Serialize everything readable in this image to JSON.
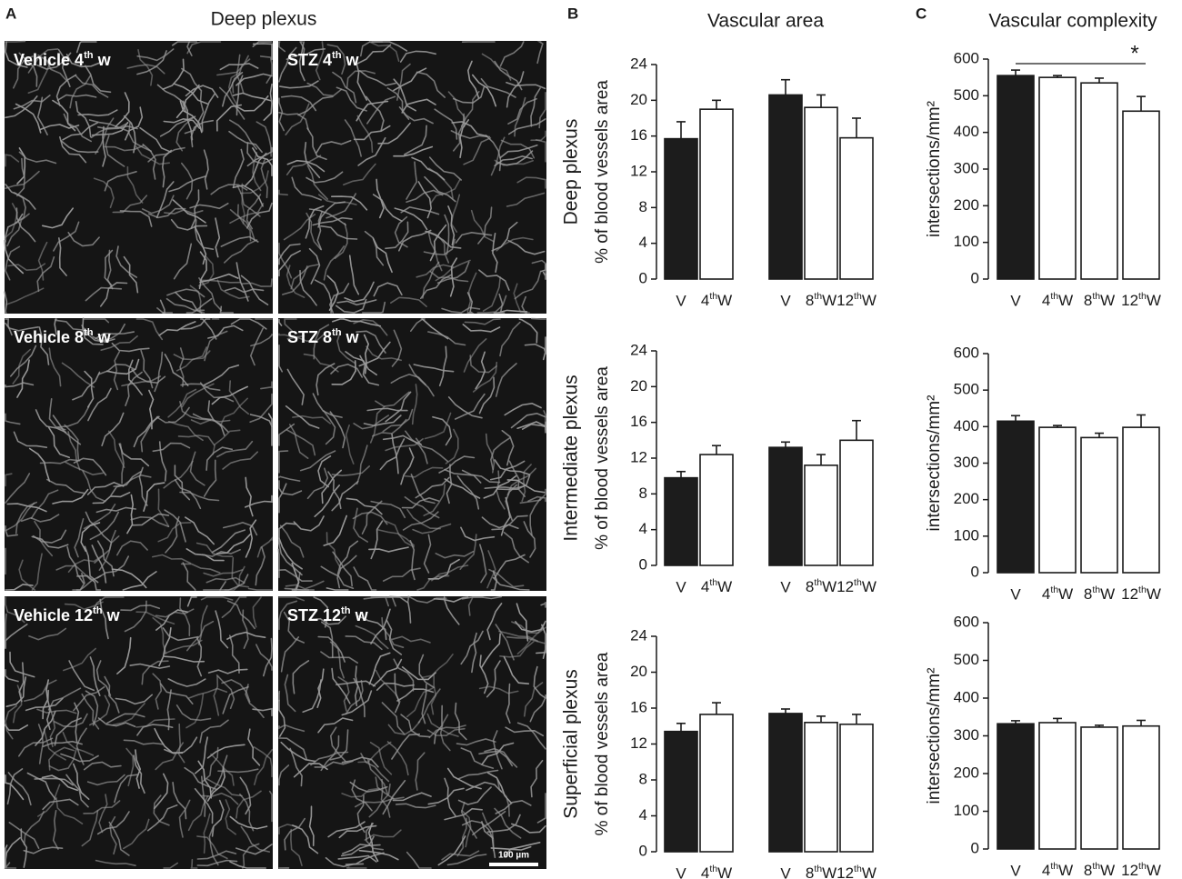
{
  "panels": {
    "A": {
      "letter": "A",
      "title": "Deep plexus",
      "images": [
        "Vehicle 4th w",
        "STZ 4th w",
        "Vehicle 8th w",
        "STZ 8th w",
        "Vehicle 12th w",
        "STZ 12th w"
      ],
      "scale_bar": "100 µm"
    },
    "B": {
      "letter": "B",
      "title": "Vascular area"
    },
    "C": {
      "letter": "C",
      "title": "Vascular complexity"
    }
  },
  "chart_data": [
    {
      "type": "bar",
      "row_label": "Deep plexus",
      "y_label": "% of blood vessels area",
      "categories": [
        "V",
        "4thW",
        "V",
        "8thW",
        "12thW"
      ],
      "values": [
        15.7,
        19.0,
        20.6,
        19.2,
        15.8
      ],
      "errors": [
        1.9,
        1.0,
        1.7,
        1.4,
        2.2
      ],
      "colors": [
        "#1c1c1c",
        "#ffffff",
        "#1c1c1c",
        "#ffffff",
        "#ffffff"
      ],
      "ylim": [
        0,
        24
      ],
      "yticks": [
        0,
        4,
        8,
        12,
        16,
        20,
        24
      ]
    },
    {
      "type": "bar",
      "row_label": "Intermediate plexus",
      "y_label": "% of blood vessels area",
      "categories": [
        "V",
        "4thW",
        "V",
        "8thW",
        "12thW"
      ],
      "values": [
        9.8,
        12.4,
        13.2,
        11.2,
        14.0
      ],
      "errors": [
        0.7,
        1.0,
        0.6,
        1.2,
        2.2
      ],
      "colors": [
        "#1c1c1c",
        "#ffffff",
        "#1c1c1c",
        "#ffffff",
        "#ffffff"
      ],
      "ylim": [
        0,
        24
      ],
      "yticks": [
        0,
        4,
        8,
        12,
        16,
        20,
        24
      ]
    },
    {
      "type": "bar",
      "row_label": "Superficial plexus",
      "y_label": "% of blood vessels area",
      "categories": [
        "V",
        "4thW",
        "V",
        "8thW",
        "12thW"
      ],
      "values": [
        13.4,
        15.3,
        15.4,
        14.4,
        14.2
      ],
      "errors": [
        0.9,
        1.3,
        0.5,
        0.7,
        1.1
      ],
      "colors": [
        "#1c1c1c",
        "#ffffff",
        "#1c1c1c",
        "#ffffff",
        "#ffffff"
      ],
      "ylim": [
        0,
        24
      ],
      "yticks": [
        0,
        4,
        8,
        12,
        16,
        20,
        24
      ]
    },
    {
      "type": "bar",
      "y_label": "intersections/mm²",
      "annotation": "*",
      "categories": [
        "V",
        "4thW",
        "8thW",
        "12thW"
      ],
      "values": [
        555,
        550,
        535,
        458
      ],
      "errors": [
        15,
        5,
        13,
        40
      ],
      "colors": [
        "#1c1c1c",
        "#ffffff",
        "#ffffff",
        "#ffffff"
      ],
      "ylim": [
        0,
        600
      ],
      "yticks": [
        0,
        100,
        200,
        300,
        400,
        500,
        600
      ]
    },
    {
      "type": "bar",
      "y_label": "intersections/mm²",
      "categories": [
        "V",
        "4thW",
        "8thW",
        "12thW"
      ],
      "values": [
        415,
        398,
        370,
        398
      ],
      "errors": [
        15,
        5,
        12,
        34
      ],
      "colors": [
        "#1c1c1c",
        "#ffffff",
        "#ffffff",
        "#ffffff"
      ],
      "ylim": [
        0,
        600
      ],
      "yticks": [
        0,
        100,
        200,
        300,
        400,
        500,
        600
      ]
    },
    {
      "type": "bar",
      "y_label": "intersections/mm²",
      "categories": [
        "V",
        "4thW",
        "8thW",
        "12thW"
      ],
      "values": [
        332,
        335,
        323,
        326
      ],
      "errors": [
        8,
        11,
        5,
        15
      ],
      "colors": [
        "#1c1c1c",
        "#ffffff",
        "#ffffff",
        "#ffffff"
      ],
      "ylim": [
        0,
        600
      ],
      "yticks": [
        0,
        100,
        200,
        300,
        400,
        500,
        600
      ]
    }
  ]
}
